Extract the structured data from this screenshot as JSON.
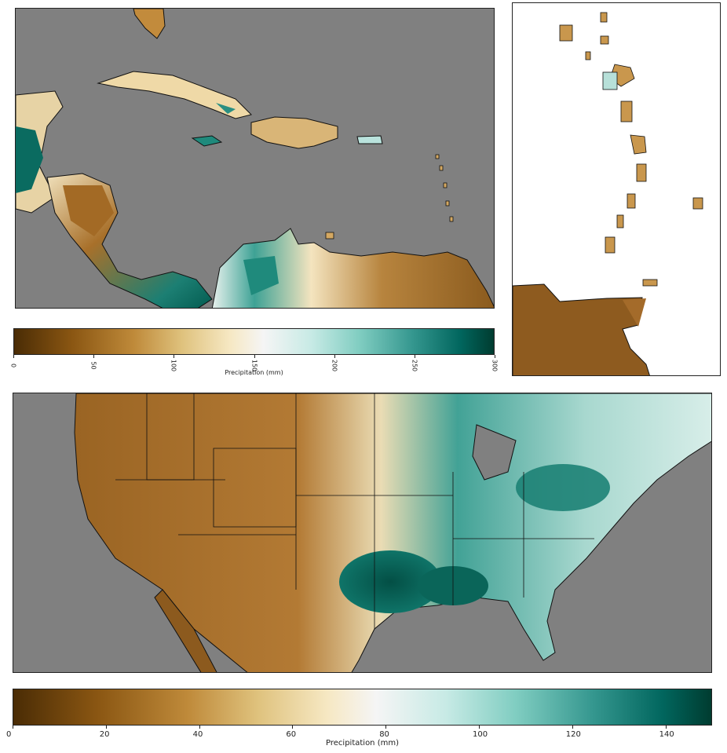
{
  "colorbars": {
    "caribbean": {
      "label": "Precipitation (mm)",
      "ticks": [
        "0",
        "50",
        "100",
        "150",
        "200",
        "250",
        "300"
      ],
      "range": [
        0,
        300
      ]
    },
    "conus": {
      "label": "Precipitation (mm)",
      "ticks": [
        "0",
        "20",
        "40",
        "60",
        "80",
        "100",
        "120",
        "140"
      ],
      "range": [
        0,
        150
      ]
    }
  },
  "colormap": {
    "name": "BrBG",
    "stops": [
      "#4a2c05",
      "#8a5612",
      "#bf8a3a",
      "#dfc27d",
      "#f6e8c3",
      "#f5f5f5",
      "#c7eae5",
      "#80cdc1",
      "#35978f",
      "#01665e",
      "#003c30"
    ]
  },
  "colors": {
    "ocean": "#808080",
    "land_dry": "#8c5a1e",
    "land_wet": "#0b6b5f",
    "border": "#111111"
  }
}
